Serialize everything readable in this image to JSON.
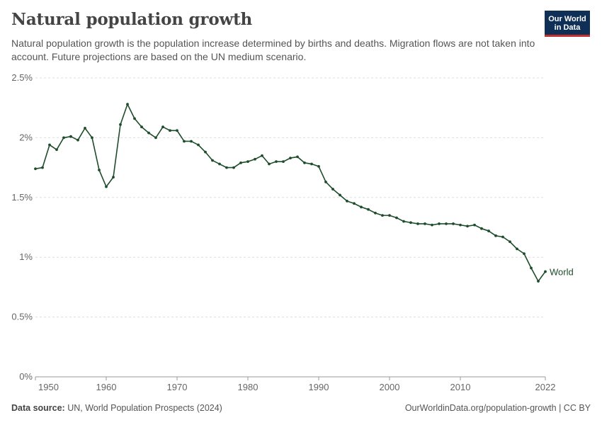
{
  "header": {
    "title": "Natural population growth",
    "subtitle": "Natural population growth is the population increase determined by births and deaths. Migration flows are not taken into account. Future projections are based on the UN medium scenario.",
    "logo_line1": "Our World",
    "logo_line2": "in Data"
  },
  "footer": {
    "source_label": "Data source:",
    "source_text": "UN, World Population Prospects (2024)",
    "url_text": "OurWorldinData.org/population-growth | CC BY"
  },
  "colors": {
    "series": "#1e4d2b",
    "logo_bg": "#0f2f57",
    "logo_accent": "#c0312f",
    "grid": "#dddddd"
  },
  "chart_data": {
    "type": "line",
    "title": "Natural population growth",
    "xlabel": "",
    "ylabel": "",
    "ylim": [
      0,
      2.5
    ],
    "xlim": [
      1950,
      2022
    ],
    "y_ticks": [
      "0%",
      "0.5%",
      "1%",
      "1.5%",
      "2%",
      "2.5%"
    ],
    "x_ticks": [
      "1950",
      "1960",
      "1970",
      "1980",
      "1990",
      "2000",
      "2010",
      "2022"
    ],
    "grid": "horizontal dashed",
    "series": [
      {
        "name": "World",
        "x": [
          1950,
          1951,
          1952,
          1953,
          1954,
          1955,
          1956,
          1957,
          1958,
          1959,
          1960,
          1961,
          1962,
          1963,
          1964,
          1965,
          1966,
          1967,
          1968,
          1969,
          1970,
          1971,
          1972,
          1973,
          1974,
          1975,
          1976,
          1977,
          1978,
          1979,
          1980,
          1981,
          1982,
          1983,
          1984,
          1985,
          1986,
          1987,
          1988,
          1989,
          1990,
          1991,
          1992,
          1993,
          1994,
          1995,
          1996,
          1997,
          1998,
          1999,
          2000,
          2001,
          2002,
          2003,
          2004,
          2005,
          2006,
          2007,
          2008,
          2009,
          2010,
          2011,
          2012,
          2013,
          2014,
          2015,
          2016,
          2017,
          2018,
          2019,
          2020,
          2021,
          2022
        ],
        "values": [
          1.74,
          1.75,
          1.94,
          1.9,
          2.0,
          2.01,
          1.98,
          2.08,
          2.0,
          1.73,
          1.59,
          1.67,
          2.11,
          2.28,
          2.16,
          2.09,
          2.04,
          2.0,
          2.09,
          2.06,
          2.06,
          1.97,
          1.97,
          1.94,
          1.88,
          1.81,
          1.78,
          1.75,
          1.75,
          1.79,
          1.8,
          1.82,
          1.85,
          1.78,
          1.8,
          1.8,
          1.83,
          1.84,
          1.79,
          1.78,
          1.76,
          1.63,
          1.57,
          1.52,
          1.47,
          1.45,
          1.42,
          1.4,
          1.37,
          1.35,
          1.35,
          1.33,
          1.3,
          1.29,
          1.28,
          1.28,
          1.27,
          1.28,
          1.28,
          1.28,
          1.27,
          1.26,
          1.27,
          1.24,
          1.22,
          1.18,
          1.17,
          1.13,
          1.07,
          1.03,
          0.91,
          0.8,
          0.88
        ]
      }
    ]
  }
}
